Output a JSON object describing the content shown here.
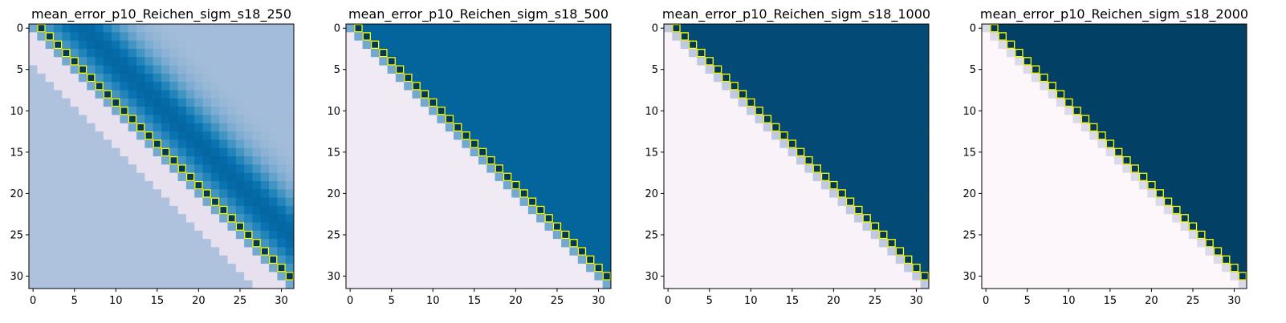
{
  "chart_data": [
    {
      "type": "heatmap",
      "title": "mean_error_p10_Reichen_sigm_s18_250",
      "size": 32,
      "xticks": [
        0,
        5,
        10,
        15,
        20,
        25,
        30
      ],
      "yticks": [
        0,
        5,
        10,
        15,
        20,
        25,
        30
      ],
      "colormap": "PuBu",
      "lower_level": 0.35,
      "upper_level": 0.38,
      "upper_peak": 0.8,
      "upper_peak_offset": 6,
      "band_width": 5,
      "lower_diag_color": "#e6e0ef",
      "sub_diagonal": 0.5,
      "diagonal_highlight": "yellow"
    },
    {
      "type": "heatmap",
      "title": "mean_error_p10_Reichen_sigm_s18_500",
      "size": 32,
      "xticks": [
        0,
        5,
        10,
        15,
        20,
        25,
        30
      ],
      "yticks": [
        0,
        5,
        10,
        15,
        20,
        25,
        30
      ],
      "colormap": "PuBu",
      "lower_level": 0.1,
      "upper_level": 0.82,
      "sub_diagonal": 0.5,
      "diagonal_highlight": "yellow"
    },
    {
      "type": "heatmap",
      "title": "mean_error_p10_Reichen_sigm_s18_1000",
      "size": 32,
      "xticks": [
        0,
        5,
        10,
        15,
        20,
        25,
        30
      ],
      "yticks": [
        0,
        5,
        10,
        15,
        20,
        25,
        30
      ],
      "colormap": "PuBu",
      "lower_level": 0.04,
      "upper_level": 0.93,
      "sub_diagonal": 0.3,
      "diagonal_highlight": "yellow"
    },
    {
      "type": "heatmap",
      "title": "mean_error_p10_Reichen_sigm_s18_2000",
      "size": 32,
      "xticks": [
        0,
        5,
        10,
        15,
        20,
        25,
        30
      ],
      "yticks": [
        0,
        5,
        10,
        15,
        20,
        25,
        30
      ],
      "colormap": "PuBu",
      "lower_level": 0.01,
      "upper_level": 0.97,
      "sub_diagonal": 0.2,
      "diagonal_highlight": "yellow"
    }
  ]
}
